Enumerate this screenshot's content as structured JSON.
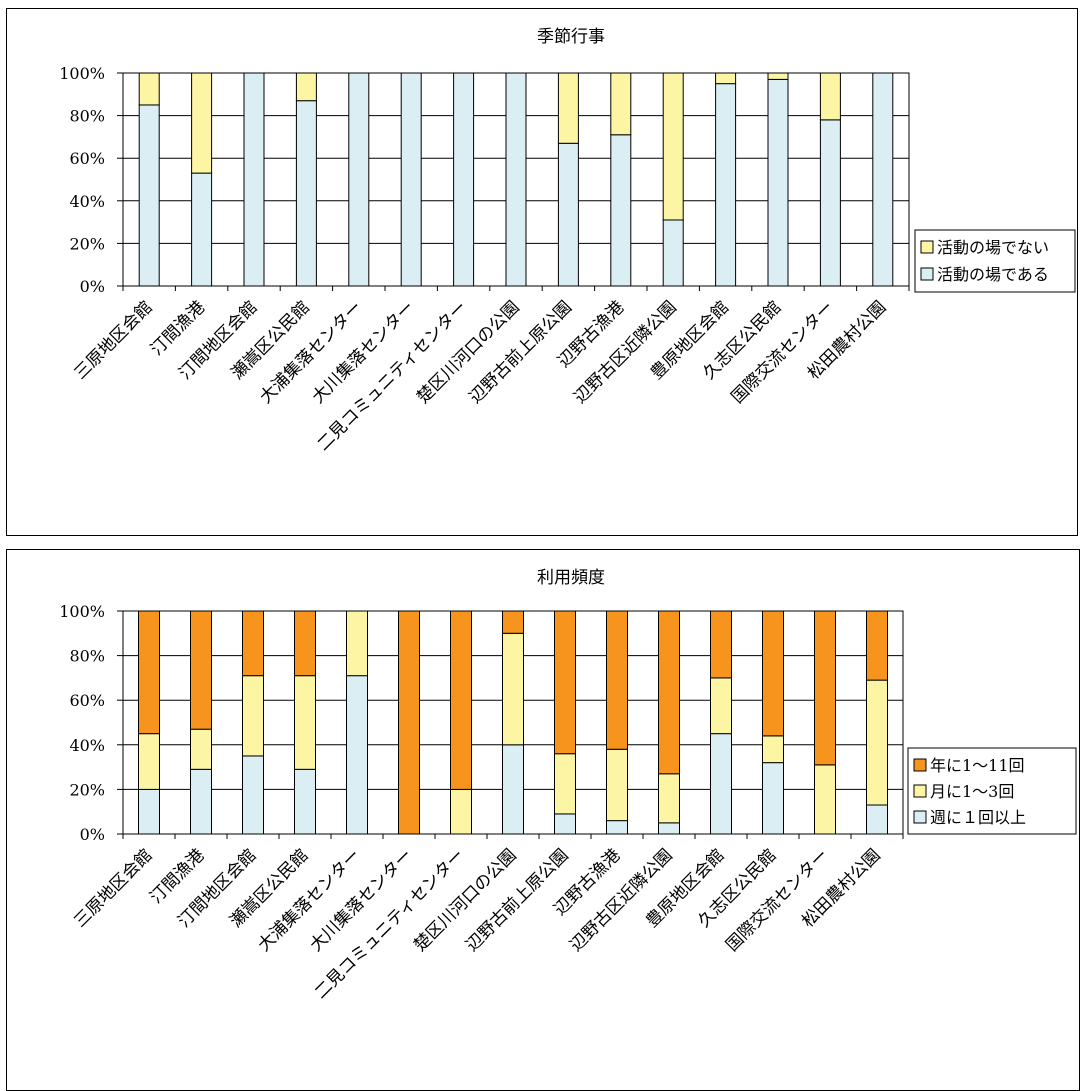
{
  "chart_data": [
    {
      "type": "bar",
      "stacked": true,
      "normalized": true,
      "title": "季節行事",
      "categories": [
        "三原地区会館",
        "汀間漁港",
        "汀間地区会館",
        "瀬嵩区公民館",
        "大浦集落センター",
        "大川集落センター",
        "二見コミュニティセンター",
        "楚区川河口の公園",
        "辺野古前上原公園",
        "辺野古漁港",
        "辺野古区近隣公園",
        "豊原地区会館",
        "久志区公民館",
        "国際交流センター",
        "松田農村公園"
      ],
      "series": [
        {
          "name": "活動の場である",
          "color": "#daeef3",
          "values": [
            85,
            53,
            100,
            87,
            100,
            100,
            100,
            100,
            67,
            71,
            31,
            95,
            97,
            78,
            100
          ]
        },
        {
          "name": "活動の場でない",
          "color": "#fbf5a4",
          "values": [
            15,
            47,
            0,
            13,
            0,
            0,
            0,
            0,
            33,
            29,
            69,
            5,
            3,
            22,
            0
          ]
        }
      ],
      "y_ticks": [
        "100%",
        "80%",
        "60%",
        "40%",
        "20%",
        "0%"
      ],
      "ylim": [
        0,
        100
      ],
      "legend_order": [
        "活動の場でない",
        "活動の場である"
      ],
      "legend_position": "right",
      "grid": true
    },
    {
      "type": "bar",
      "stacked": true,
      "normalized": true,
      "title": "利用頻度",
      "categories": [
        "三原地区会館",
        "汀間漁港",
        "汀間地区会館",
        "瀬嵩区公民館",
        "大浦集落センター",
        "大川集落センター",
        "二見コミュニティセンター",
        "楚区川河口の公園",
        "辺野古前上原公園",
        "辺野古漁港",
        "辺野古区近隣公園",
        "豊原地区会館",
        "久志区公民館",
        "国際交流センター",
        "松田農村公園"
      ],
      "series": [
        {
          "name": "週に１回以上",
          "color": "#daeef3",
          "values": [
            20,
            29,
            35,
            29,
            71,
            0,
            0,
            40,
            9,
            6,
            5,
            45,
            32,
            0,
            13
          ]
        },
        {
          "name": "月に1～3回",
          "color": "#fbf5a4",
          "values": [
            25,
            18,
            36,
            42,
            29,
            0,
            20,
            50,
            27,
            32,
            22,
            25,
            12,
            31,
            56
          ]
        },
        {
          "name": "年に1～11回",
          "color": "#f7941d",
          "values": [
            55,
            53,
            29,
            29,
            0,
            100,
            80,
            10,
            64,
            62,
            73,
            30,
            56,
            69,
            31
          ]
        }
      ],
      "y_ticks": [
        "100%",
        "80%",
        "60%",
        "40%",
        "20%",
        "0%"
      ],
      "ylim": [
        0,
        100
      ],
      "legend_order": [
        "年に1～11回",
        "月に1～3回",
        "週に１回以上"
      ],
      "legend_position": "right",
      "grid": true
    }
  ]
}
